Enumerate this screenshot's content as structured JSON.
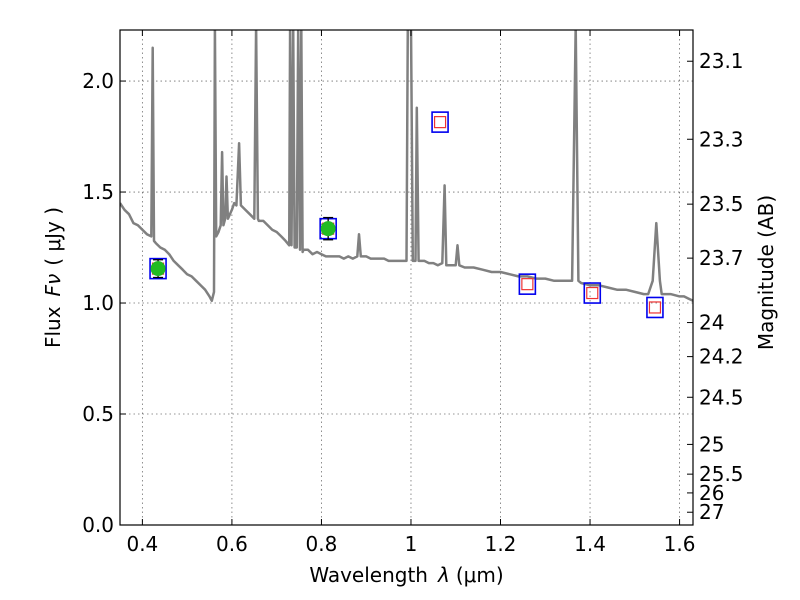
{
  "chart_data": {
    "type": "line",
    "xlabel": "Wavelength",
    "xlabel_symbol": "λ",
    "xlabel_unit": "(μm)",
    "ylabel": "Flux",
    "ylabel_symbol": "Fν",
    "ylabel_unit": "( μJy )",
    "right_ylabel": "Magnitude (AB)",
    "xlim": [
      0.35,
      1.63
    ],
    "ylim": [
      0.0,
      2.23
    ],
    "grid": true,
    "x_ticks": [
      {
        "value": 0.4,
        "label": "0.4"
      },
      {
        "value": 0.6,
        "label": "0.6"
      },
      {
        "value": 0.8,
        "label": "0.8"
      },
      {
        "value": 1.0,
        "label": "1"
      },
      {
        "value": 1.2,
        "label": "1.2"
      },
      {
        "value": 1.4,
        "label": "1.4"
      },
      {
        "value": 1.6,
        "label": "1.6"
      }
    ],
    "y_ticks": [
      {
        "value": 0.0,
        "label": "0.0"
      },
      {
        "value": 0.5,
        "label": "0.5"
      },
      {
        "value": 1.0,
        "label": "1.0"
      },
      {
        "value": 1.5,
        "label": "1.5"
      },
      {
        "value": 2.0,
        "label": "2.0"
      }
    ],
    "mag_ticks": [
      {
        "mag": 23.1,
        "label": "23.1"
      },
      {
        "mag": 23.3,
        "label": "23.3"
      },
      {
        "mag": 23.5,
        "label": "23.5"
      },
      {
        "mag": 23.7,
        "label": "23.7"
      },
      {
        "mag": 24.0,
        "label": "24"
      },
      {
        "mag": 24.2,
        "label": "24.2"
      },
      {
        "mag": 24.5,
        "label": "24.5"
      },
      {
        "mag": 25.0,
        "label": "25"
      },
      {
        "mag": 25.5,
        "label": "25.5"
      },
      {
        "mag": 26.0,
        "label": "26"
      },
      {
        "mag": 27.0,
        "label": "27"
      }
    ],
    "spectrum": {
      "color": "#808080",
      "points": [
        [
          0.35,
          1.45
        ],
        [
          0.36,
          1.42
        ],
        [
          0.37,
          1.4
        ],
        [
          0.38,
          1.36
        ],
        [
          0.39,
          1.35
        ],
        [
          0.4,
          1.33
        ],
        [
          0.41,
          1.31
        ],
        [
          0.42,
          1.3
        ],
        [
          0.423,
          2.15
        ],
        [
          0.426,
          1.28
        ],
        [
          0.43,
          1.27
        ],
        [
          0.44,
          1.25
        ],
        [
          0.45,
          1.24
        ],
        [
          0.46,
          1.22
        ],
        [
          0.47,
          1.19
        ],
        [
          0.48,
          1.17
        ],
        [
          0.49,
          1.15
        ],
        [
          0.5,
          1.13
        ],
        [
          0.51,
          1.12
        ],
        [
          0.52,
          1.1
        ],
        [
          0.53,
          1.08
        ],
        [
          0.54,
          1.06
        ],
        [
          0.55,
          1.03
        ],
        [
          0.555,
          1.01
        ],
        [
          0.56,
          1.05
        ],
        [
          0.562,
          2.25
        ],
        [
          0.565,
          1.3
        ],
        [
          0.57,
          1.32
        ],
        [
          0.575,
          1.35
        ],
        [
          0.578,
          1.68
        ],
        [
          0.581,
          1.35
        ],
        [
          0.585,
          1.38
        ],
        [
          0.588,
          1.57
        ],
        [
          0.591,
          1.38
        ],
        [
          0.6,
          1.42
        ],
        [
          0.605,
          1.45
        ],
        [
          0.61,
          1.44
        ],
        [
          0.616,
          1.72
        ],
        [
          0.62,
          1.44
        ],
        [
          0.63,
          1.42
        ],
        [
          0.64,
          1.4
        ],
        [
          0.65,
          1.38
        ],
        [
          0.654,
          2.25
        ],
        [
          0.658,
          1.38
        ],
        [
          0.66,
          1.37
        ],
        [
          0.67,
          1.37
        ],
        [
          0.68,
          1.35
        ],
        [
          0.69,
          1.33
        ],
        [
          0.7,
          1.32
        ],
        [
          0.71,
          1.3
        ],
        [
          0.72,
          1.28
        ],
        [
          0.728,
          1.26
        ],
        [
          0.73,
          2.25
        ],
        [
          0.733,
          1.26
        ],
        [
          0.737,
          2.25
        ],
        [
          0.74,
          1.25
        ],
        [
          0.745,
          1.25
        ],
        [
          0.748,
          2.25
        ],
        [
          0.752,
          1.24
        ],
        [
          0.755,
          2.25
        ],
        [
          0.758,
          1.23
        ],
        [
          0.76,
          1.24
        ],
        [
          0.77,
          1.24
        ],
        [
          0.78,
          1.22
        ],
        [
          0.79,
          1.23
        ],
        [
          0.8,
          1.22
        ],
        [
          0.81,
          1.21
        ],
        [
          0.82,
          1.21
        ],
        [
          0.83,
          1.21
        ],
        [
          0.84,
          1.21
        ],
        [
          0.85,
          1.2
        ],
        [
          0.86,
          1.21
        ],
        [
          0.87,
          1.2
        ],
        [
          0.88,
          1.21
        ],
        [
          0.884,
          1.31
        ],
        [
          0.888,
          1.21
        ],
        [
          0.9,
          1.21
        ],
        [
          0.91,
          1.2
        ],
        [
          0.92,
          1.2
        ],
        [
          0.93,
          1.2
        ],
        [
          0.94,
          1.2
        ],
        [
          0.95,
          1.19
        ],
        [
          0.96,
          1.19
        ],
        [
          0.97,
          1.19
        ],
        [
          0.975,
          1.19
        ],
        [
          0.985,
          1.19
        ],
        [
          0.99,
          1.19
        ],
        [
          0.993,
          2.25
        ],
        [
          1.0,
          2.25
        ],
        [
          1.004,
          1.19
        ],
        [
          1.01,
          1.19
        ],
        [
          1.013,
          1.88
        ],
        [
          1.017,
          1.19
        ],
        [
          1.03,
          1.19
        ],
        [
          1.04,
          1.18
        ],
        [
          1.05,
          1.18
        ],
        [
          1.06,
          1.17
        ],
        [
          1.07,
          1.18
        ],
        [
          1.075,
          1.53
        ],
        [
          1.079,
          1.17
        ],
        [
          1.09,
          1.17
        ],
        [
          1.1,
          1.17
        ],
        [
          1.104,
          1.26
        ],
        [
          1.108,
          1.17
        ],
        [
          1.12,
          1.16
        ],
        [
          1.14,
          1.16
        ],
        [
          1.16,
          1.15
        ],
        [
          1.18,
          1.14
        ],
        [
          1.2,
          1.14
        ],
        [
          1.22,
          1.13
        ],
        [
          1.24,
          1.12
        ],
        [
          1.26,
          1.12
        ],
        [
          1.28,
          1.11
        ],
        [
          1.3,
          1.11
        ],
        [
          1.32,
          1.1
        ],
        [
          1.34,
          1.1
        ],
        [
          1.36,
          1.1
        ],
        [
          1.368,
          2.25
        ],
        [
          1.374,
          1.1
        ],
        [
          1.38,
          1.09
        ],
        [
          1.4,
          1.08
        ],
        [
          1.42,
          1.08
        ],
        [
          1.44,
          1.07
        ],
        [
          1.46,
          1.06
        ],
        [
          1.48,
          1.06
        ],
        [
          1.5,
          1.05
        ],
        [
          1.52,
          1.04
        ],
        [
          1.53,
          1.04
        ],
        [
          1.54,
          1.1
        ],
        [
          1.548,
          1.36
        ],
        [
          1.556,
          1.1
        ],
        [
          1.56,
          1.04
        ],
        [
          1.58,
          1.04
        ],
        [
          1.6,
          1.03
        ],
        [
          1.61,
          1.03
        ],
        [
          1.62,
          1.02
        ],
        [
          1.63,
          1.01
        ]
      ]
    },
    "measured_points": [
      {
        "x": 0.435,
        "y": 1.155,
        "err": 0.04,
        "color": "#22bb22"
      },
      {
        "x": 0.815,
        "y": 1.335,
        "err": 0.05,
        "color": "#22bb22"
      }
    ],
    "model_boxes": [
      {
        "x": 0.435,
        "y": 1.155
      },
      {
        "x": 0.815,
        "y": 1.335
      },
      {
        "x": 1.065,
        "y": 1.815
      },
      {
        "x": 1.26,
        "y": 1.085
      },
      {
        "x": 1.405,
        "y": 1.045
      },
      {
        "x": 1.545,
        "y": 0.98
      }
    ],
    "model_box_color": "#0000ee",
    "model_inner_color": "#ee3333"
  }
}
